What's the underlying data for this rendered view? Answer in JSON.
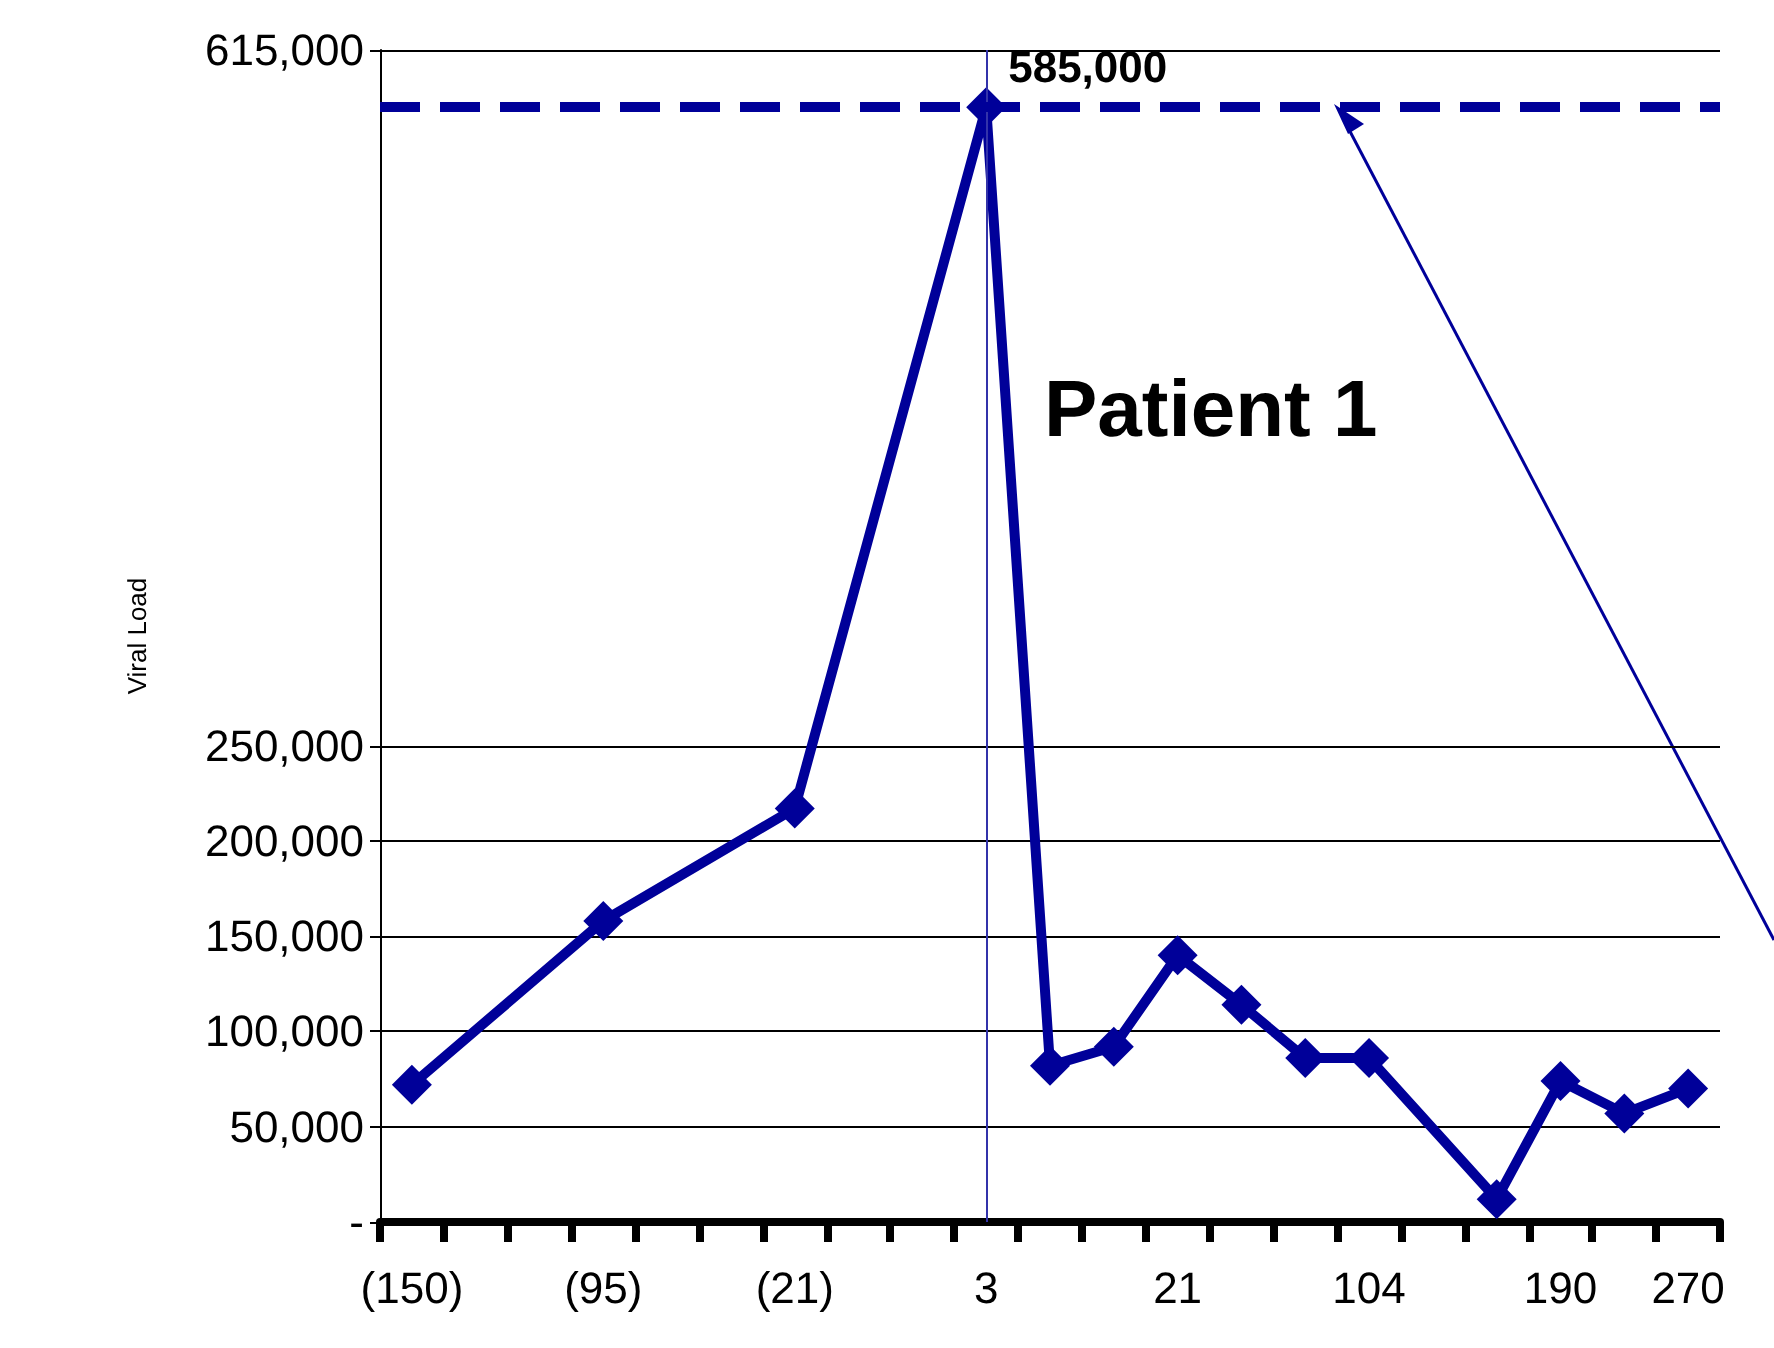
{
  "chart_data": {
    "type": "line",
    "ylabel": "Viral Load",
    "categories": [
      "(150)",
      null,
      null,
      "(95)",
      null,
      null,
      "(21)",
      null,
      null,
      "3",
      null,
      null,
      "21",
      null,
      null,
      "104",
      null,
      null,
      "190",
      null,
      "270"
    ],
    "series": [
      {
        "color": "#000099",
        "values": [
          72000,
          null,
          null,
          158000,
          null,
          null,
          217000,
          null,
          null,
          585000,
          82000,
          92000,
          140000,
          114000,
          86000,
          86000,
          null,
          12000,
          74000,
          57000,
          70000
        ],
        "value_labels": [
          null,
          null,
          null,
          null,
          null,
          null,
          null,
          null,
          null,
          "585,000",
          null,
          null,
          null,
          null,
          null,
          null,
          null,
          null,
          null,
          null,
          null
        ]
      }
    ],
    "ylim": [
      0,
      615000
    ],
    "yticks": [
      {
        "value": 0,
        "label": "-"
      },
      {
        "value": 50000,
        "label": "50,000"
      },
      {
        "value": 100000,
        "label": "100,000"
      },
      {
        "value": 150000,
        "label": "150,000"
      },
      {
        "value": 200000,
        "label": "200,000"
      },
      {
        "value": 250000,
        "label": "250,000"
      },
      {
        "value": 615000,
        "label": "615,000"
      }
    ],
    "ref_lines": [
      {
        "axis": "x",
        "value": "3",
        "color": "#3333aa",
        "line_style": "solid"
      },
      {
        "axis": "y",
        "value": 585000,
        "color": "#000099",
        "line_style": "dashed"
      }
    ],
    "annotations": [
      "Patient 1"
    ],
    "grid": "y",
    "marker": "diamond",
    "line_style": "solid"
  }
}
